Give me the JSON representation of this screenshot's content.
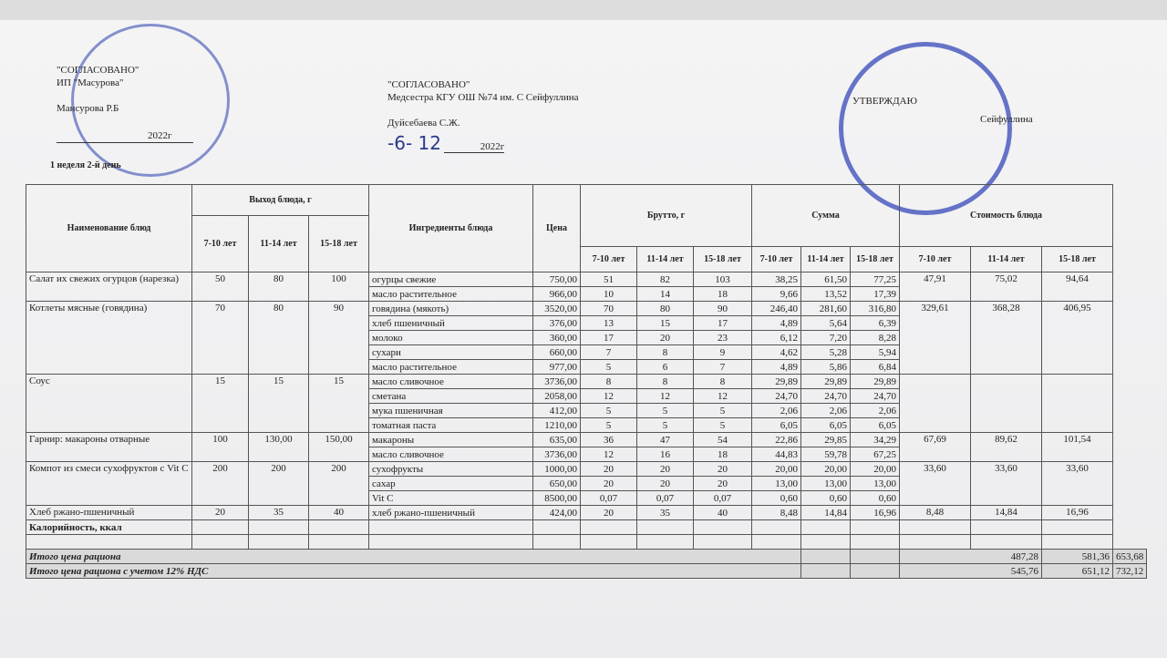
{
  "approvals": [
    {
      "lines": [
        "\"СОГЛАСОВАНО\"",
        "ИП \"Масурова\"",
        "Мансурова Р.Б",
        "2022г"
      ]
    },
    {
      "lines": [
        "\"СОГЛАСОВАНО\"",
        "Медсестра КГУ ОШ №74 им. С Сейфуллина",
        "Дуйсебаева С.Ж.",
        "-6- 12",
        "2022г"
      ]
    },
    {
      "lines": [
        "УТВЕРЖДАЮ",
        "Сейфуллина"
      ]
    }
  ],
  "week": "1 неделя 2-й день",
  "table": {
    "headers": {
      "dish": "Наименование блюд",
      "yield": "Выход блюда, г",
      "ingredients": "Ингредиенты блюда",
      "price": "Цена",
      "brutto": "Брутто, г",
      "sum": "Сумма",
      "cost": "Стоимость блюда",
      "ages": [
        "7-10 лет",
        "11-14 лет",
        "15-18 лет"
      ]
    },
    "dishes": [
      {
        "name": "Салат их свежих огурцов (нарезка)",
        "yield": [
          "50",
          "80",
          "100"
        ],
        "cost": [
          "47,91",
          "75,02",
          "94,64"
        ],
        "ingredients": [
          {
            "name": "огурцы свежие",
            "price": "750,00",
            "brutto": [
              "51",
              "82",
              "103"
            ],
            "sum": [
              "38,25",
              "61,50",
              "77,25"
            ]
          },
          {
            "name": "масло растительное",
            "price": "966,00",
            "brutto": [
              "10",
              "14",
              "18"
            ],
            "sum": [
              "9,66",
              "13,52",
              "17,39"
            ]
          }
        ]
      },
      {
        "name": "Котлеты мясные (говядина)",
        "yield": [
          "70",
          "80",
          "90"
        ],
        "cost": [
          "329,61",
          "368,28",
          "406,95"
        ],
        "ingredients": [
          {
            "name": "говядина (мякоть)",
            "price": "3520,00",
            "brutto": [
              "70",
              "80",
              "90"
            ],
            "sum": [
              "246,40",
              "281,60",
              "316,80"
            ]
          },
          {
            "name": "хлеб пшеничный",
            "price": "376,00",
            "brutto": [
              "13",
              "15",
              "17"
            ],
            "sum": [
              "4,89",
              "5,64",
              "6,39"
            ]
          },
          {
            "name": "молоко",
            "price": "360,00",
            "brutto": [
              "17",
              "20",
              "23"
            ],
            "sum": [
              "6,12",
              "7,20",
              "8,28"
            ]
          },
          {
            "name": "сухари",
            "price": "660,00",
            "brutto": [
              "7",
              "8",
              "9"
            ],
            "sum": [
              "4,62",
              "5,28",
              "5,94"
            ]
          },
          {
            "name": "масло растительное",
            "price": "977,00",
            "brutto": [
              "5",
              "6",
              "7"
            ],
            "sum": [
              "4,89",
              "5,86",
              "6,84"
            ]
          }
        ]
      },
      {
        "name": "Соус",
        "yield": [
          "15",
          "15",
          "15"
        ],
        "ingredients": [
          {
            "name": "масло сливочное",
            "price": "3736,00",
            "brutto": [
              "8",
              "8",
              "8"
            ],
            "sum": [
              "29,89",
              "29,89",
              "29,89"
            ]
          },
          {
            "name": "сметана",
            "price": "2058,00",
            "brutto": [
              "12",
              "12",
              "12"
            ],
            "sum": [
              "24,70",
              "24,70",
              "24,70"
            ]
          },
          {
            "name": "мука пшеничная",
            "price": "412,00",
            "brutto": [
              "5",
              "5",
              "5"
            ],
            "sum": [
              "2,06",
              "2,06",
              "2,06"
            ]
          },
          {
            "name": "томатная паста",
            "price": "1210,00",
            "brutto": [
              "5",
              "5",
              "5"
            ],
            "sum": [
              "6,05",
              "6,05",
              "6,05"
            ]
          }
        ]
      },
      {
        "name": "Гарнир: макароны отварные",
        "yield": [
          "100",
          "130,00",
          "150,00"
        ],
        "cost": [
          "67,69",
          "89,62",
          "101,54"
        ],
        "ingredients": [
          {
            "name": "макароны",
            "price": "635,00",
            "brutto": [
              "36",
              "47",
              "54"
            ],
            "sum": [
              "22,86",
              "29,85",
              "34,29"
            ]
          },
          {
            "name": "масло сливочное",
            "price": "3736,00",
            "brutto": [
              "12",
              "16",
              "18"
            ],
            "sum": [
              "44,83",
              "59,78",
              "67,25"
            ]
          }
        ]
      },
      {
        "name": "Компот из смеси сухофруктов с Vit C",
        "yield": [
          "200",
          "200",
          "200"
        ],
        "cost": [
          "33,60",
          "33,60",
          "33,60"
        ],
        "ingredients": [
          {
            "name": "сухофрукты",
            "price": "1000,00",
            "brutto": [
              "20",
              "20",
              "20"
            ],
            "sum": [
              "20,00",
              "20,00",
              "20,00"
            ]
          },
          {
            "name": "сахар",
            "price": "650,00",
            "brutto": [
              "20",
              "20",
              "20"
            ],
            "sum": [
              "13,00",
              "13,00",
              "13,00"
            ]
          },
          {
            "name": "Vit C",
            "price": "8500,00",
            "brutto": [
              "0,07",
              "0,07",
              "0,07"
            ],
            "sum": [
              "0,60",
              "0,60",
              "0,60"
            ]
          }
        ]
      },
      {
        "name": "Хлеб ржано-пшеничный",
        "yield": [
          "20",
          "35",
          "40"
        ],
        "cost": [
          "8,48",
          "14,84",
          "16,96"
        ],
        "ingredients": [
          {
            "name": "хлеб ржано-пшеничный",
            "price": "424,00",
            "brutto": [
              "20",
              "35",
              "40"
            ],
            "sum": [
              "8,48",
              "14,84",
              "16,96"
            ]
          }
        ]
      }
    ],
    "calories": "Калорийность, ккал",
    "totals": [
      {
        "label": "Итого цена рациона",
        "values": [
          "487,28",
          "581,36",
          "653,68"
        ]
      },
      {
        "label": "Итого цена рациона с учетом 12% НДС",
        "values": [
          "545,76",
          "651,12",
          "732,12"
        ]
      }
    ]
  }
}
